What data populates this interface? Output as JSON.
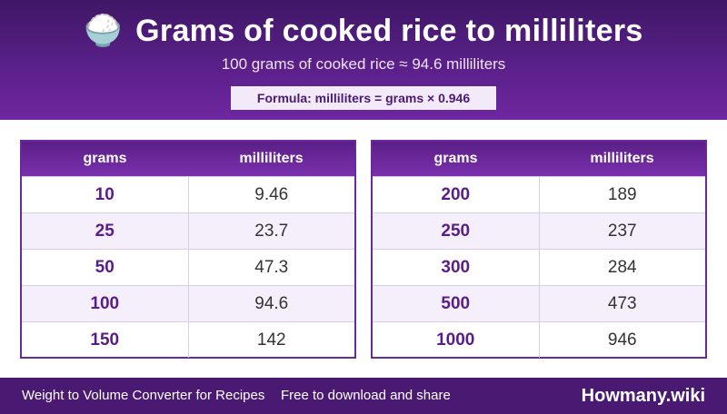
{
  "header": {
    "icon": "🍚",
    "title": "Grams of cooked rice to milliliters",
    "subtitle": "100 grams of cooked rice ≈ 94.6 milliliters",
    "formula": "Formula: milliliters = grams × 0.946"
  },
  "tables": [
    {
      "headers": {
        "grams": "grams",
        "ml": "milliliters"
      },
      "rows": [
        {
          "grams": "10",
          "ml": "9.46"
        },
        {
          "grams": "25",
          "ml": "23.7"
        },
        {
          "grams": "50",
          "ml": "47.3"
        },
        {
          "grams": "100",
          "ml": "94.6"
        },
        {
          "grams": "150",
          "ml": "142"
        }
      ]
    },
    {
      "headers": {
        "grams": "grams",
        "ml": "milliliters"
      },
      "rows": [
        {
          "grams": "200",
          "ml": "189"
        },
        {
          "grams": "250",
          "ml": "237"
        },
        {
          "grams": "300",
          "ml": "284"
        },
        {
          "grams": "500",
          "ml": "473"
        },
        {
          "grams": "1000",
          "ml": "946"
        }
      ]
    }
  ],
  "footer": {
    "left": "Weight to Volume Converter for Recipes",
    "middle": "Free to download and share",
    "brand": "Howmany.wiki"
  },
  "colors": {
    "header_bg": "#5a2089",
    "accent": "#6b2a9c",
    "grams_text": "#5a1c88",
    "footer_bg": "#4a1a73"
  }
}
